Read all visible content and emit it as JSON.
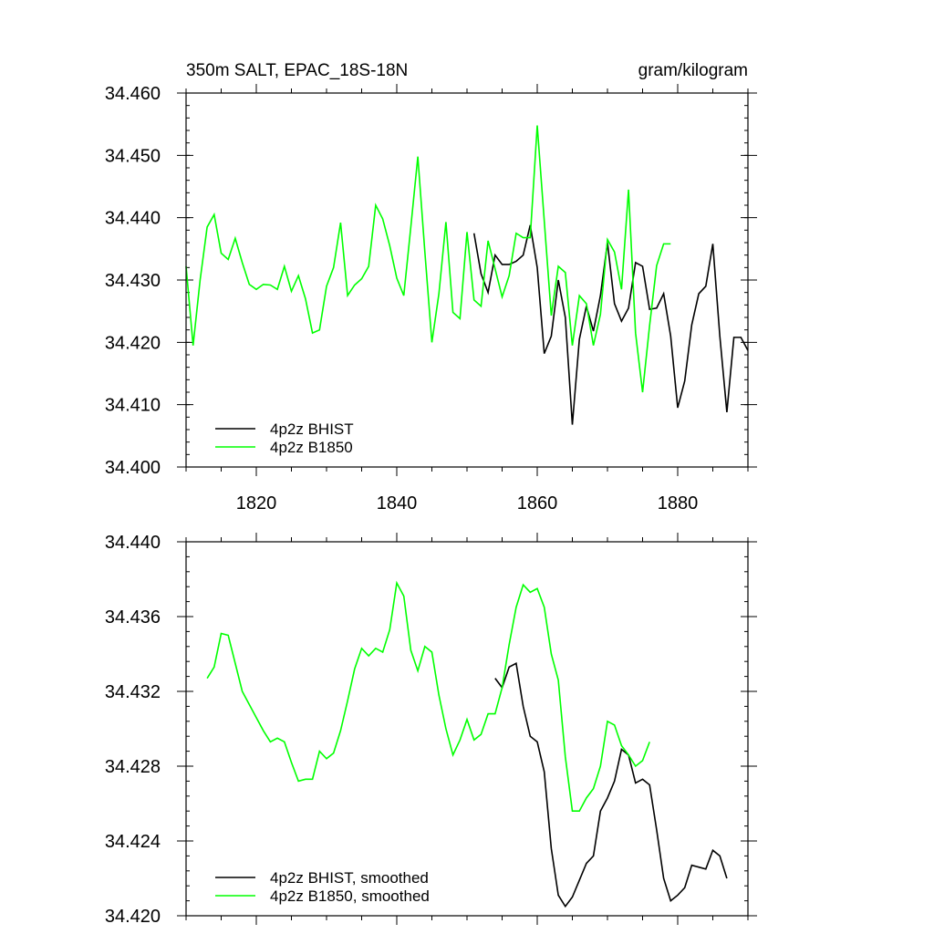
{
  "figure": {
    "title_left": "350m SALT, EPAC_18S-18N",
    "title_right": "gram/kilogram"
  },
  "colors": {
    "bhist": "#000000",
    "b1850": "#00ff00",
    "frame": "#000000"
  },
  "chart_data": [
    {
      "type": "line",
      "panel": "top",
      "xlim": [
        1810,
        1890
      ],
      "ylim": [
        34.4,
        34.46
      ],
      "xticks": [
        1820,
        1840,
        1860,
        1880
      ],
      "xtick_labels": [
        "1820",
        "1840",
        "1860",
        "1880"
      ],
      "yticks": [
        34.4,
        34.41,
        34.42,
        34.43,
        34.44,
        34.45,
        34.46
      ],
      "ytick_labels": [
        "34.400",
        "34.410",
        "34.420",
        "34.430",
        "34.440",
        "34.450",
        "34.460"
      ],
      "legend": "bottom-left",
      "series": [
        {
          "name": "4p2z BHIST",
          "color": "#000000",
          "x": [
            1851,
            1852,
            1853,
            1854,
            1855,
            1856,
            1857,
            1858,
            1859,
            1860,
            1861,
            1862,
            1863,
            1864,
            1865,
            1866,
            1867,
            1868,
            1869,
            1870,
            1871,
            1872,
            1873,
            1874,
            1875,
            1876,
            1877,
            1878,
            1879,
            1880,
            1881,
            1882,
            1883,
            1884,
            1885,
            1886,
            1887,
            1888,
            1889,
            1890
          ],
          "values": [
            34.4375,
            34.431,
            34.428,
            34.434,
            34.4325,
            34.4325,
            34.433,
            34.434,
            34.4388,
            34.432,
            34.4182,
            34.421,
            34.43,
            34.424,
            34.4068,
            34.4205,
            34.4258,
            34.4218,
            34.4275,
            34.436,
            34.4262,
            34.4234,
            34.4255,
            34.4328,
            34.4322,
            34.4253,
            34.4255,
            34.4278,
            34.421,
            34.4095,
            34.4138,
            34.4228,
            34.4278,
            34.429,
            34.4358,
            34.421,
            34.4088,
            34.4208,
            34.4208,
            34.4187
          ]
        },
        {
          "name": "4p2z B1850",
          "color": "#00ff00",
          "x": [
            1810,
            1811,
            1812,
            1813,
            1814,
            1815,
            1816,
            1817,
            1818,
            1819,
            1820,
            1821,
            1822,
            1823,
            1824,
            1825,
            1826,
            1827,
            1828,
            1829,
            1830,
            1831,
            1832,
            1833,
            1834,
            1835,
            1836,
            1837,
            1838,
            1839,
            1840,
            1841,
            1842,
            1843,
            1844,
            1845,
            1846,
            1847,
            1848,
            1849,
            1850,
            1851,
            1852,
            1853,
            1854,
            1855,
            1856,
            1857,
            1858,
            1859,
            1860,
            1861,
            1862,
            1863,
            1864,
            1865,
            1866,
            1867,
            1868,
            1869,
            1870,
            1871,
            1872,
            1873,
            1874,
            1875,
            1876,
            1877,
            1878,
            1879
          ],
          "values": [
            34.4322,
            34.4195,
            34.43,
            34.4385,
            34.4405,
            34.4343,
            34.4333,
            34.4367,
            34.4328,
            34.4293,
            34.4285,
            34.4293,
            34.4292,
            34.4285,
            34.4322,
            34.4282,
            34.4307,
            34.427,
            34.4215,
            34.422,
            34.429,
            34.432,
            34.4392,
            34.4275,
            34.4292,
            34.4302,
            34.4322,
            34.442,
            34.4398,
            34.4355,
            34.4303,
            34.4275,
            34.4385,
            34.4498,
            34.4345,
            34.42,
            34.4278,
            34.4393,
            34.4248,
            34.4238,
            34.4377,
            34.4268,
            34.4258,
            34.4363,
            34.4318,
            34.4273,
            34.4307,
            34.4375,
            34.4368,
            34.4368,
            34.4548,
            34.4395,
            34.4243,
            34.4322,
            34.4312,
            34.4195,
            34.4275,
            34.4262,
            34.4195,
            34.4245,
            34.4365,
            34.4345,
            34.4285,
            34.4445,
            34.4215,
            34.412,
            34.4227,
            34.4323,
            34.4358,
            34.4358
          ]
        }
      ]
    },
    {
      "type": "line",
      "panel": "bottom",
      "xlim": [
        1810,
        1890
      ],
      "ylim": [
        34.42,
        34.44
      ],
      "xticks": [
        1820,
        1840,
        1860,
        1880
      ],
      "xtick_labels": [],
      "yticks": [
        34.42,
        34.424,
        34.428,
        34.432,
        34.436,
        34.44
      ],
      "ytick_labels": [
        "34.420",
        "34.424",
        "34.428",
        "34.432",
        "34.436",
        "34.440"
      ],
      "legend": "bottom-left",
      "series": [
        {
          "name": "4p2z BHIST, smoothed",
          "color": "#000000",
          "x": [
            1854,
            1855,
            1856,
            1857,
            1858,
            1859,
            1860,
            1861,
            1862,
            1863,
            1864,
            1865,
            1866,
            1867,
            1868,
            1869,
            1870,
            1871,
            1872,
            1873,
            1874,
            1875,
            1876,
            1877,
            1878,
            1879,
            1880,
            1881,
            1882,
            1883,
            1884,
            1885,
            1886,
            1887
          ],
          "values": [
            34.4327,
            34.4322,
            34.4333,
            34.4335,
            34.4312,
            34.4296,
            34.4293,
            34.4277,
            34.4236,
            34.4211,
            34.4205,
            34.421,
            34.4219,
            34.4228,
            34.4232,
            34.4256,
            34.4263,
            34.4272,
            34.4289,
            34.4286,
            34.4271,
            34.4273,
            34.427,
            34.4246,
            34.422,
            34.4208,
            34.4211,
            34.4215,
            34.4227,
            34.4226,
            34.4225,
            34.4235,
            34.4232,
            34.422
          ]
        },
        {
          "name": "4p2z B1850, smoothed",
          "color": "#00ff00",
          "x": [
            1813,
            1814,
            1815,
            1816,
            1817,
            1818,
            1819,
            1820,
            1821,
            1822,
            1823,
            1824,
            1825,
            1826,
            1827,
            1828,
            1829,
            1830,
            1831,
            1832,
            1833,
            1834,
            1835,
            1836,
            1837,
            1838,
            1839,
            1840,
            1841,
            1842,
            1843,
            1844,
            1845,
            1846,
            1847,
            1848,
            1849,
            1850,
            1851,
            1852,
            1853,
            1854,
            1855,
            1856,
            1857,
            1858,
            1859,
            1860,
            1861,
            1862,
            1863,
            1864,
            1865,
            1866,
            1867,
            1868,
            1869,
            1870,
            1871,
            1872,
            1873,
            1874,
            1875,
            1876
          ],
          "values": [
            34.4327,
            34.4333,
            34.4351,
            34.435,
            34.4335,
            34.432,
            34.4313,
            34.4306,
            34.4299,
            34.4293,
            34.4295,
            34.4293,
            34.4282,
            34.4272,
            34.4273,
            34.4273,
            34.4288,
            34.4284,
            34.4287,
            34.4299,
            34.4315,
            34.4332,
            34.4343,
            34.4339,
            34.4343,
            34.4341,
            34.4353,
            34.4378,
            34.4371,
            34.4342,
            34.4331,
            34.4344,
            34.4341,
            34.4318,
            34.43,
            34.4286,
            34.4294,
            34.4305,
            34.4294,
            34.4297,
            34.4308,
            34.4308,
            34.4322,
            34.4345,
            34.4365,
            34.4377,
            34.4373,
            34.4375,
            34.4365,
            34.434,
            34.4326,
            34.4285,
            34.4256,
            34.4256,
            34.4263,
            34.4268,
            34.428,
            34.4304,
            34.4302,
            34.4291,
            34.4286,
            34.428,
            34.4283,
            34.4293
          ]
        }
      ]
    }
  ]
}
